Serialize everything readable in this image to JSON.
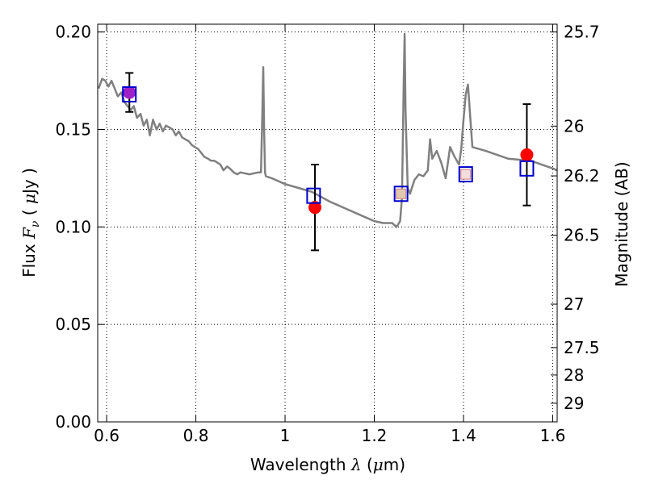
{
  "chart_data": {
    "type": "line",
    "xlabel_text": "Wavelength ",
    "xlabel_symbol": "λ",
    "xlabel_unit_open": " (",
    "xlabel_unit_mu": "μ",
    "xlabel_unit_rest": "m)",
    "ylabel_text": "Flux ",
    "ylabel_symbol": "F",
    "ylabel_sub": "ν",
    "ylabel_unit_open": "  ( ",
    "ylabel_unit_mu": "μ",
    "ylabel_unit_rest": "Jy )",
    "ylabel_right": "Magnitude (AB)",
    "xlim": [
      0.58,
      1.61
    ],
    "ylim": [
      0.0,
      0.204
    ],
    "grid": true,
    "x_ticks": [
      {
        "value": 0.6,
        "label": "0.6"
      },
      {
        "value": 0.8,
        "label": "0.8"
      },
      {
        "value": 1.0,
        "label": "1"
      },
      {
        "value": 1.2,
        "label": "1.2"
      },
      {
        "value": 1.4,
        "label": "1.4"
      },
      {
        "value": 1.6,
        "label": "1.6"
      }
    ],
    "y_ticks": [
      {
        "value": 0.0,
        "label": "0.00"
      },
      {
        "value": 0.05,
        "label": "0.05"
      },
      {
        "value": 0.1,
        "label": "0.10"
      },
      {
        "value": 0.15,
        "label": "0.15"
      },
      {
        "value": 0.2,
        "label": "0.20"
      }
    ],
    "y_right_ticks": [
      {
        "value": 25.7,
        "label": "25.7"
      },
      {
        "value": 26.0,
        "label": "26"
      },
      {
        "value": 26.2,
        "label": "26.2"
      },
      {
        "value": 26.5,
        "label": "26.5"
      },
      {
        "value": 27.0,
        "label": "27"
      },
      {
        "value": 27.5,
        "label": "27.5"
      },
      {
        "value": 28.0,
        "label": "28"
      },
      {
        "value": 29.0,
        "label": "29"
      }
    ],
    "model_spectrum": {
      "color": "#808080",
      "x": [
        0.582,
        0.59,
        0.597,
        0.604,
        0.611,
        0.618,
        0.625,
        0.633,
        0.64,
        0.647,
        0.654,
        0.661,
        0.668,
        0.676,
        0.683,
        0.69,
        0.697,
        0.704,
        0.712,
        0.719,
        0.726,
        0.733,
        0.741,
        0.748,
        0.755,
        0.762,
        0.769,
        0.776,
        0.784,
        0.791,
        0.798,
        0.805,
        0.812,
        0.819,
        0.827,
        0.834,
        0.841,
        0.848,
        0.855,
        0.862,
        0.87,
        0.876,
        0.885,
        0.893,
        0.9,
        0.92,
        0.94,
        0.946,
        0.949,
        0.951,
        0.953,
        0.955,
        0.957,
        0.97,
        1.0,
        1.03,
        1.06,
        1.1,
        1.14,
        1.18,
        1.2,
        1.22,
        1.24,
        1.25,
        1.258,
        1.262,
        1.266,
        1.268,
        1.27,
        1.275,
        1.28,
        1.29,
        1.3,
        1.31,
        1.32,
        1.325,
        1.33,
        1.34,
        1.35,
        1.36,
        1.365,
        1.37,
        1.38,
        1.39,
        1.395,
        1.4,
        1.405,
        1.41,
        1.42,
        1.45,
        1.5,
        1.55,
        1.6,
        1.61
      ],
      "y": [
        0.171,
        0.176,
        0.175,
        0.172,
        0.175,
        0.171,
        0.167,
        0.169,
        0.164,
        0.162,
        0.16,
        0.162,
        0.156,
        0.158,
        0.152,
        0.155,
        0.147,
        0.155,
        0.15,
        0.153,
        0.149,
        0.152,
        0.151,
        0.15,
        0.147,
        0.149,
        0.146,
        0.145,
        0.144,
        0.142,
        0.141,
        0.14,
        0.138,
        0.136,
        0.135,
        0.134,
        0.134,
        0.133,
        0.132,
        0.129,
        0.131,
        0.13,
        0.128,
        0.127,
        0.128,
        0.127,
        0.128,
        0.128,
        0.157,
        0.182,
        0.15,
        0.128,
        0.126,
        0.125,
        0.122,
        0.12,
        0.118,
        0.113,
        0.109,
        0.105,
        0.103,
        0.102,
        0.102,
        0.1,
        0.103,
        0.115,
        0.175,
        0.199,
        0.16,
        0.12,
        0.117,
        0.124,
        0.127,
        0.126,
        0.129,
        0.145,
        0.135,
        0.139,
        0.133,
        0.125,
        0.133,
        0.141,
        0.136,
        0.132,
        0.14,
        0.155,
        0.168,
        0.173,
        0.141,
        0.139,
        0.135,
        0.134,
        0.13,
        0.129
      ]
    },
    "photometry": {
      "color": "#ff0000",
      "x": [
        0.651,
        1.067,
        1.542
      ],
      "y": [
        0.169,
        0.11,
        0.137
      ],
      "yerr": [
        0.01,
        0.022,
        0.026
      ]
    },
    "model_boxes": {
      "color": "#0000cc",
      "x": [
        0.651,
        1.064,
        1.26,
        1.405,
        1.542
      ],
      "y": [
        0.168,
        0.116,
        0.117,
        0.127,
        0.13
      ]
    },
    "inner_points": {
      "x": [
        0.651,
        1.26,
        1.405
      ],
      "y": [
        0.169,
        0.117,
        0.127
      ],
      "colors": [
        "#a020c8",
        "#e0c8b0",
        "#f4dcdc"
      ]
    }
  }
}
